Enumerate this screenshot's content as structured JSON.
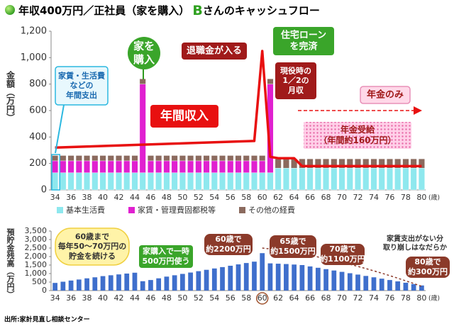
{
  "title_parts": [
    "年収400万円／正社員（家を購入）",
    "B",
    "さんのキャッシュフロー"
  ],
  "source": "出所:家計見直し相談センター",
  "chart_data": [
    {
      "type": "bar",
      "stacked": true,
      "ylabel": "金額（万円）",
      "x_unit": "(歳)",
      "categories": [
        "34",
        null,
        "36",
        null,
        "38",
        null,
        "40",
        null,
        "42",
        null,
        "44",
        null,
        "46",
        null,
        "48",
        null,
        "50",
        null,
        "52",
        null,
        "54",
        null,
        "56",
        null,
        "58",
        null,
        "60",
        null,
        "62",
        null,
        "64",
        null,
        "66",
        null,
        "68",
        null,
        "70",
        null,
        "72",
        null,
        "74",
        null,
        "76",
        null,
        "78",
        null,
        "80"
      ],
      "ylim": [
        0,
        1200
      ],
      "yticks": [
        0,
        200,
        400,
        600,
        800,
        {
          "value": 1000,
          "label": "1,000"
        },
        {
          "value": 1200,
          "label": "1,200"
        }
      ],
      "series": [
        {
          "name": "基本生活費",
          "color": "#8ee8ee",
          "values": [
            130,
            130,
            130,
            130,
            130,
            130,
            130,
            130,
            130,
            130,
            130,
            130,
            130,
            130,
            130,
            130,
            130,
            130,
            130,
            130,
            130,
            130,
            130,
            130,
            130,
            130,
            130,
            130,
            165,
            165,
            165,
            165,
            165,
            165,
            165,
            165,
            165,
            165,
            165,
            165,
            165,
            165,
            165,
            165,
            165,
            165,
            165
          ]
        },
        {
          "name": "家賃・管理費固都税等",
          "color": "#e020d0",
          "values": [
            90,
            90,
            90,
            90,
            90,
            90,
            90,
            90,
            90,
            90,
            90,
            670,
            90,
            90,
            90,
            90,
            90,
            90,
            90,
            90,
            90,
            90,
            90,
            90,
            90,
            90,
            90,
            670,
            0,
            0,
            0,
            0,
            0,
            0,
            0,
            0,
            0,
            0,
            0,
            0,
            0,
            0,
            0,
            0,
            0,
            0,
            0
          ]
        },
        {
          "name": "その他の経費",
          "color": "#8b6a5e",
          "values": [
            40,
            40,
            40,
            40,
            40,
            40,
            40,
            40,
            40,
            40,
            40,
            40,
            40,
            40,
            40,
            40,
            40,
            40,
            40,
            40,
            40,
            40,
            40,
            40,
            40,
            40,
            40,
            40,
            70,
            70,
            70,
            70,
            70,
            70,
            70,
            70,
            70,
            70,
            70,
            70,
            70,
            70,
            70,
            70,
            70,
            70,
            70
          ]
        },
        {
          "type": "line",
          "color": "#e81010",
          "values": [
            320,
            322,
            324,
            326,
            328,
            330,
            332,
            334,
            336,
            338,
            340,
            342,
            344,
            346,
            348,
            350,
            352,
            354,
            356,
            358,
            360,
            362,
            364,
            366,
            368,
            370,
            1050,
            250,
            240,
            240,
            240,
            180,
            180,
            180,
            180,
            180,
            180,
            180,
            180,
            180,
            180,
            180,
            180,
            180,
            180,
            180,
            180
          ]
        }
      ],
      "annotations": [
        [
          "家賃・生活費",
          "などの",
          "年間支出"
        ],
        [
          "家を",
          "購入"
        ],
        [
          "年間収入"
        ],
        [
          "退職金が入る"
        ],
        [
          "住宅ローン",
          "を完済"
        ],
        [
          "現役時の",
          "1／2の",
          "月収"
        ],
        [
          "年金のみ"
        ],
        [
          "年金受給",
          "（年間約160万円）"
        ]
      ]
    },
    {
      "type": "bar",
      "ylabel": "預貯金残高（万円）",
      "x_unit": "(歳)",
      "color": "#3f6fcc",
      "categories": [
        "34",
        null,
        "36",
        null,
        "38",
        null,
        "40",
        null,
        "42",
        null,
        "44",
        null,
        "46",
        null,
        "48",
        null,
        "50",
        null,
        "52",
        null,
        "54",
        null,
        "56",
        null,
        "58",
        null,
        "60",
        null,
        "62",
        null,
        "64",
        null,
        "66",
        null,
        "68",
        null,
        "70",
        null,
        "72",
        null,
        "74",
        null,
        "76",
        null,
        "78",
        null,
        "80"
      ],
      "ylim": [
        0,
        3500
      ],
      "yticks": [
        0,
        500,
        {
          "value": 1000,
          "label": "1,000"
        },
        {
          "value": 1500,
          "label": "1,500"
        },
        {
          "value": 2000,
          "label": "2,000"
        },
        {
          "value": 2500,
          "label": "2,500"
        },
        {
          "value": 3000,
          "label": "3,000"
        },
        {
          "value": 3500,
          "label": "3,500"
        }
      ],
      "values": [
        450,
        520,
        590,
        650,
        720,
        780,
        850,
        900,
        950,
        1000,
        1050,
        550,
        620,
        720,
        820,
        900,
        980,
        1060,
        1140,
        1220,
        1300,
        1380,
        1460,
        1540,
        1620,
        1700,
        2200,
        1600,
        1580,
        1560,
        1530,
        1500,
        1420,
        1340,
        1260,
        1180,
        1100,
        1020,
        940,
        860,
        780,
        700,
        620,
        540,
        460,
        380,
        300
      ],
      "annotations": [
        [
          "60歳まで",
          "毎年50～70万円の",
          "貯金を続ける"
        ],
        [
          "家購入で一時",
          "500万円使う"
        ],
        [
          "60歳で",
          "約2200万円"
        ],
        [
          "65歳で",
          "約1500万円"
        ],
        [
          "70歳で",
          "約1100万円"
        ],
        [
          "家賃支出がない分",
          "取り崩しはなだらか"
        ],
        [
          "80歳で",
          "約300万円"
        ]
      ]
    }
  ]
}
